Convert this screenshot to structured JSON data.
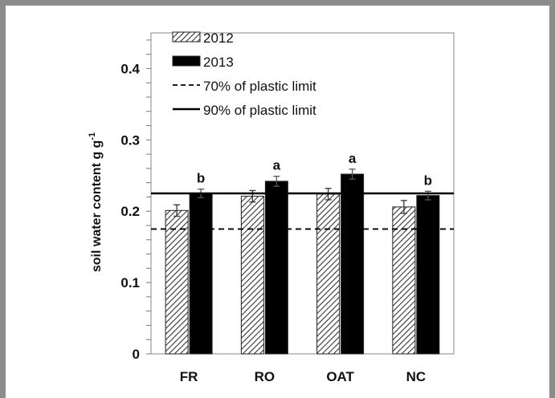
{
  "chart_data": {
    "type": "bar",
    "categories": [
      "FR",
      "RO",
      "OAT",
      "NC"
    ],
    "series": [
      {
        "name": "2012",
        "values": [
          0.201,
          0.221,
          0.224,
          0.206
        ],
        "errors": [
          0.008,
          0.008,
          0.008,
          0.009
        ],
        "fill": "hatched"
      },
      {
        "name": "2013",
        "values": [
          0.225,
          0.242,
          0.252,
          0.222
        ],
        "errors": [
          0.006,
          0.007,
          0.007,
          0.006
        ],
        "fill": "#000000"
      }
    ],
    "significance_labels": [
      "b",
      "a",
      "a",
      "b"
    ],
    "reference_lines": [
      {
        "name": "70% of plastic limit",
        "value": 0.175,
        "style": "dashed"
      },
      {
        "name": "90% of plastic limit",
        "value": 0.225,
        "style": "solid"
      }
    ],
    "ylabel": "soil water content g g",
    "ylabel_superscript": "-1",
    "ylim": [
      0,
      0.45
    ],
    "yticks": [
      0,
      0.1,
      0.2,
      0.3,
      0.4
    ],
    "ytick_labels": [
      "0",
      "0.1",
      "0.2",
      "0.3",
      "0.4"
    ],
    "legend_position": "top-left",
    "grid": false
  }
}
